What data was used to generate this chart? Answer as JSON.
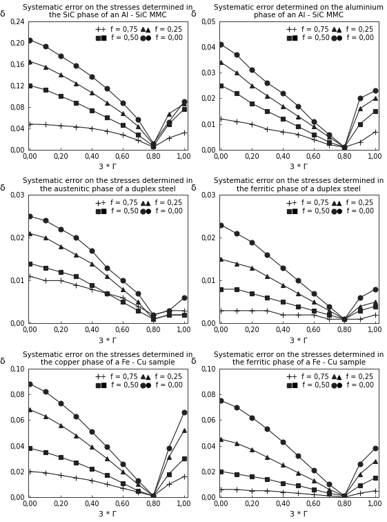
{
  "subplots": [
    {
      "title": "Systematic error on the stresses determined in\nthe SiC phase of an Al - SiC MMC",
      "ylim": [
        0,
        0.24
      ],
      "yticks": [
        0.0,
        0.04,
        0.08,
        0.12,
        0.16,
        0.2,
        0.24
      ],
      "ytick_labels": [
        "0,00",
        "0,04",
        "0,08",
        "0,12",
        "0,16",
        "0,20",
        "0,24"
      ],
      "series": {
        "f075": [
          0.048,
          0.047,
          0.045,
          0.043,
          0.04,
          0.035,
          0.028,
          0.018,
          0.005,
          0.022,
          0.032
        ],
        "f050": [
          0.12,
          0.112,
          0.1,
          0.088,
          0.074,
          0.06,
          0.046,
          0.028,
          0.007,
          0.048,
          0.076
        ],
        "f025": [
          0.165,
          0.155,
          0.14,
          0.124,
          0.107,
          0.088,
          0.068,
          0.044,
          0.01,
          0.067,
          0.086
        ],
        "f000": [
          0.205,
          0.193,
          0.175,
          0.157,
          0.137,
          0.114,
          0.088,
          0.057,
          0.012,
          0.052,
          0.09
        ]
      }
    },
    {
      "title": "Systematic error determined on the aluminium\nphase of an Al - SiC MMC",
      "ylim": [
        0,
        0.05
      ],
      "yticks": [
        0.0,
        0.01,
        0.02,
        0.03,
        0.04,
        0.05
      ],
      "ytick_labels": [
        "0,00",
        "0,01",
        "0,02",
        "0,03",
        "0,04",
        "0,05"
      ],
      "series": {
        "f075": [
          0.012,
          0.011,
          0.01,
          0.008,
          0.007,
          0.006,
          0.004,
          0.002,
          0.001,
          0.003,
          0.007
        ],
        "f050": [
          0.025,
          0.022,
          0.018,
          0.015,
          0.012,
          0.009,
          0.006,
          0.003,
          0.001,
          0.01,
          0.015
        ],
        "f025": [
          0.034,
          0.03,
          0.025,
          0.021,
          0.017,
          0.013,
          0.009,
          0.005,
          0.001,
          0.016,
          0.02
        ],
        "f000": [
          0.041,
          0.037,
          0.031,
          0.026,
          0.022,
          0.017,
          0.011,
          0.006,
          0.001,
          0.02,
          0.023
        ]
      }
    },
    {
      "title": "Systematic error on the stresses determined in\nthe austenitic phase of a duplex steel",
      "ylim": [
        0,
        0.03
      ],
      "yticks": [
        0.0,
        0.01,
        0.02,
        0.03
      ],
      "ytick_labels": [
        "0,00",
        "0,01",
        "0,02",
        "0,03"
      ],
      "series": {
        "f075": [
          0.011,
          0.01,
          0.01,
          0.009,
          0.008,
          0.007,
          0.006,
          0.004,
          0.002,
          0.003,
          0.003
        ],
        "f050": [
          0.014,
          0.013,
          0.012,
          0.011,
          0.009,
          0.007,
          0.005,
          0.003,
          0.001,
          0.002,
          0.002
        ],
        "f025": [
          0.021,
          0.02,
          0.018,
          0.016,
          0.014,
          0.011,
          0.008,
          0.005,
          0.001,
          0.002,
          0.002
        ],
        "f000": [
          0.025,
          0.024,
          0.022,
          0.02,
          0.017,
          0.013,
          0.01,
          0.007,
          0.002,
          0.003,
          0.006
        ]
      }
    },
    {
      "title": "Systematic error on the stresses determined in\nthe ferritic phase of a duplex steel",
      "ylim": [
        0,
        0.03
      ],
      "yticks": [
        0.0,
        0.01,
        0.02,
        0.03
      ],
      "ytick_labels": [
        "0,00",
        "0,01",
        "0,02",
        "0,03"
      ],
      "series": {
        "f075": [
          0.003,
          0.003,
          0.003,
          0.003,
          0.002,
          0.002,
          0.002,
          0.001,
          0.001,
          0.001,
          0.002
        ],
        "f050": [
          0.008,
          0.008,
          0.007,
          0.006,
          0.005,
          0.004,
          0.003,
          0.002,
          0.001,
          0.003,
          0.004
        ],
        "f025": [
          0.015,
          0.014,
          0.013,
          0.011,
          0.009,
          0.007,
          0.005,
          0.003,
          0.001,
          0.004,
          0.005
        ],
        "f000": [
          0.023,
          0.021,
          0.019,
          0.016,
          0.013,
          0.01,
          0.007,
          0.004,
          0.001,
          0.006,
          0.008
        ]
      }
    },
    {
      "title": "Systematic error on the stresses determined in\nthe copper phase of a Fe - Cu sample",
      "ylim": [
        0,
        0.1
      ],
      "yticks": [
        0.0,
        0.02,
        0.04,
        0.06,
        0.08,
        0.1
      ],
      "ytick_labels": [
        "0,00",
        "0,02",
        "0,04",
        "0,06",
        "0,08",
        "0,10"
      ],
      "series": {
        "f075": [
          0.02,
          0.019,
          0.017,
          0.015,
          0.013,
          0.01,
          0.007,
          0.004,
          0.001,
          0.01,
          0.016
        ],
        "f050": [
          0.038,
          0.035,
          0.031,
          0.027,
          0.022,
          0.017,
          0.011,
          0.005,
          0.001,
          0.018,
          0.03
        ],
        "f025": [
          0.068,
          0.063,
          0.056,
          0.048,
          0.039,
          0.03,
          0.02,
          0.01,
          0.001,
          0.031,
          0.052
        ],
        "f000": [
          0.088,
          0.082,
          0.073,
          0.063,
          0.051,
          0.039,
          0.026,
          0.013,
          0.001,
          0.038,
          0.066
        ]
      }
    },
    {
      "title": "Systematic error on the stresses determined in\nthe ferritic phase of a Fe - Cu sample",
      "ylim": [
        0,
        0.1
      ],
      "yticks": [
        0.0,
        0.02,
        0.04,
        0.06,
        0.08,
        0.1
      ],
      "ytick_labels": [
        "0,00",
        "0,02",
        "0,04",
        "0,06",
        "0,08",
        "0,10"
      ],
      "series": {
        "f075": [
          0.006,
          0.006,
          0.005,
          0.005,
          0.004,
          0.003,
          0.002,
          0.001,
          0.0,
          0.003,
          0.005
        ],
        "f050": [
          0.02,
          0.018,
          0.016,
          0.014,
          0.011,
          0.009,
          0.006,
          0.003,
          0.001,
          0.009,
          0.015
        ],
        "f025": [
          0.045,
          0.042,
          0.037,
          0.031,
          0.025,
          0.019,
          0.013,
          0.006,
          0.001,
          0.018,
          0.028
        ],
        "f000": [
          0.075,
          0.07,
          0.062,
          0.053,
          0.043,
          0.032,
          0.021,
          0.01,
          0.001,
          0.026,
          0.038
        ]
      }
    }
  ],
  "x_values": [
    0.0,
    0.1,
    0.2,
    0.3,
    0.4,
    0.5,
    0.6,
    0.7,
    0.8,
    0.9,
    1.0
  ],
  "xticks": [
    0.0,
    0.2,
    0.4,
    0.6,
    0.8,
    1.0
  ],
  "xtick_labels": [
    "0,00",
    "0,20",
    "0,40",
    "0,60",
    "0,80",
    "1,00"
  ],
  "xlabel": "3 * Γ",
  "delta_label": "δ",
  "background_color": "#ffffff"
}
